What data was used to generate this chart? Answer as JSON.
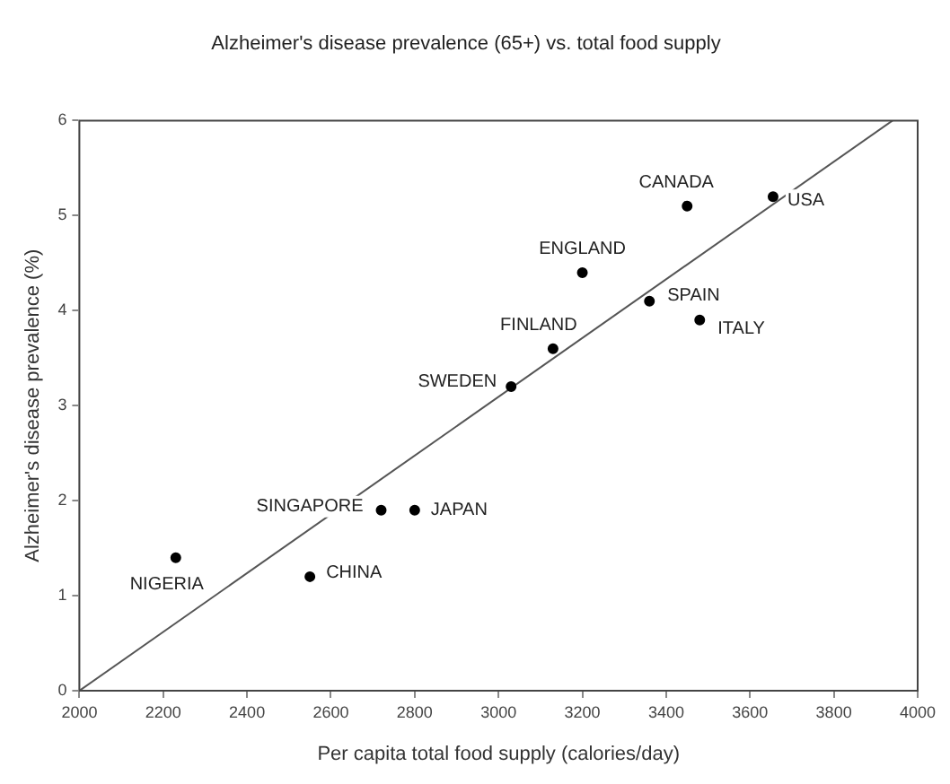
{
  "chart_data": {
    "type": "scatter",
    "title": "Alzheimer's disease prevalence (65+) vs. total food supply",
    "xlabel": "Per capita total food supply (calories/day)",
    "ylabel": "Alzheimer's disease prevalence (%)",
    "marker": "circle",
    "series": [
      {
        "type": "scatter",
        "color": "#000000",
        "x": [
          3450,
          3655,
          3200,
          3360,
          3480,
          3130,
          3030,
          2720,
          2800,
          2230,
          2550
        ],
        "values": [
          5.1,
          5.2,
          4.4,
          4.1,
          3.9,
          3.6,
          3.2,
          1.9,
          1.9,
          1.4,
          1.2
        ]
      },
      {
        "type": "line",
        "marker": "none",
        "color": "#555555",
        "x": [
          2000,
          3940
        ],
        "values": [
          0,
          6
        ]
      }
    ],
    "annotations": [
      {
        "text": "CANADA",
        "x": 3450,
        "y": 5.1
      },
      {
        "text": "USA",
        "x": 3655,
        "y": 5.2
      },
      {
        "text": "ENGLAND",
        "x": 3200,
        "y": 4.4
      },
      {
        "text": "SPAIN",
        "x": 3360,
        "y": 4.1
      },
      {
        "text": "ITALY",
        "x": 3480,
        "y": 3.9
      },
      {
        "text": "FINLAND",
        "x": 3130,
        "y": 3.6
      },
      {
        "text": "SWEDEN",
        "x": 3030,
        "y": 3.2
      },
      {
        "text": "SINGAPORE",
        "x": 2720,
        "y": 1.9
      },
      {
        "text": "JAPAN",
        "x": 2800,
        "y": 1.9
      },
      {
        "text": "NIGERIA",
        "x": 2230,
        "y": 1.4
      },
      {
        "text": "CHINA",
        "x": 2550,
        "y": 1.2
      }
    ],
    "xlim": [
      2000,
      4000
    ],
    "xticks": [
      2000,
      2200,
      2400,
      2600,
      2800,
      3000,
      3200,
      3400,
      3600,
      3800,
      4000
    ],
    "ylim": [
      0,
      6
    ],
    "yticks": [
      0,
      1,
      2,
      3,
      4,
      5,
      6
    ],
    "grid": false,
    "legend": false
  }
}
